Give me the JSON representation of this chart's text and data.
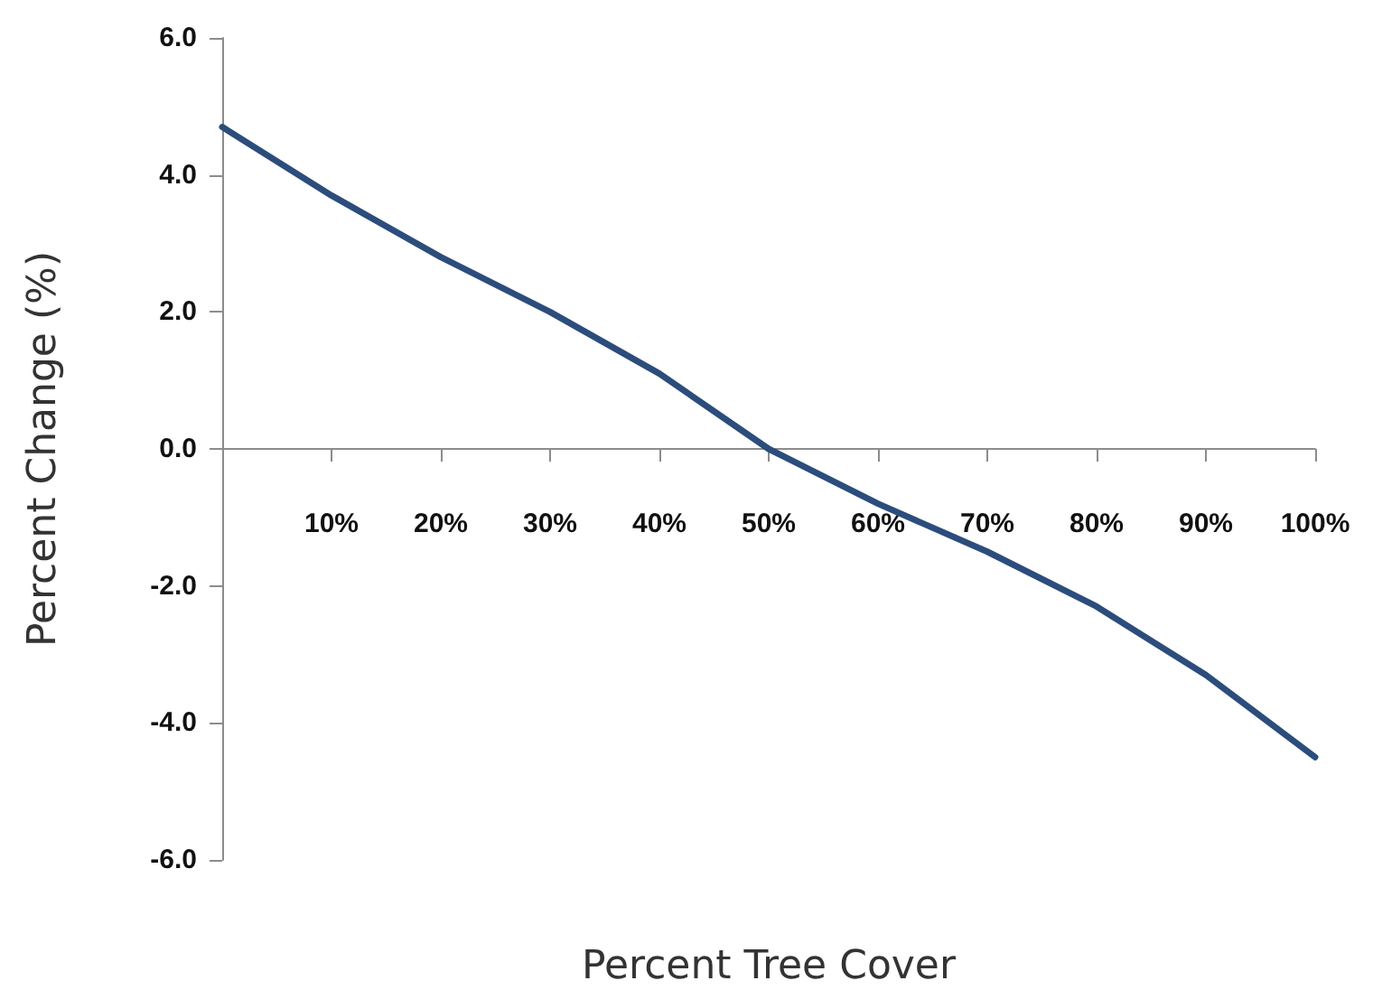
{
  "chart_data": {
    "type": "line",
    "xlabel": "Percent Tree Cover",
    "ylabel": "Percent Change (%)",
    "categories": [
      null,
      "10%",
      "20%",
      "30%",
      "40%",
      "50%",
      "60%",
      "70%",
      "80%",
      "90%",
      "100%"
    ],
    "series": [
      {
        "color": "#2c4d7c",
        "values": [
          4.7,
          3.7,
          2.8,
          2.0,
          1.1,
          0.0,
          -0.8,
          -1.5,
          -2.3,
          -3.3,
          -4.5
        ]
      }
    ],
    "ylim": [
      -6,
      6
    ],
    "yticks": [
      {
        "value": -6,
        "label": "-6.0"
      },
      {
        "value": -4,
        "label": "-4.0"
      },
      {
        "value": -2,
        "label": "-2.0"
      },
      {
        "value": 0,
        "label": "0.0"
      },
      {
        "value": 2,
        "label": "2.0"
      },
      {
        "value": 4,
        "label": "4.0"
      },
      {
        "value": 6,
        "label": "6.0"
      }
    ],
    "grid": false,
    "marker": "none",
    "line_style": "solid"
  }
}
